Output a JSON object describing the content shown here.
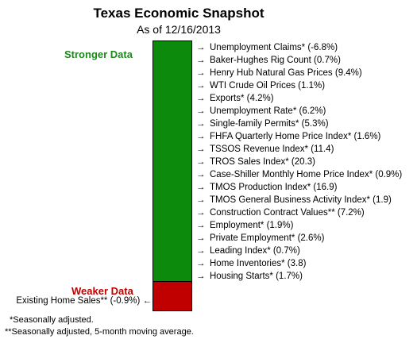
{
  "chart_data": {
    "type": "bar",
    "title": "Texas Economic Snapshot",
    "subtitle": "As of 12/16/2013",
    "categories": [
      "Stronger Data",
      "Weaker Data"
    ],
    "colors": {
      "stronger": "#0c8a0c",
      "weaker": "#c00000"
    },
    "stronger": {
      "label": "Stronger Data",
      "items": [
        "Unemployment Claims* (-6.8%)",
        "Baker-Hughes Rig Count (0.7%)",
        "Henry Hub Natural Gas Prices (9.4%)",
        "WTI Crude Oil Prices (1.1%)",
        "Exports* (4.2%)",
        "Unemployment Rate* (6.2%)",
        "Single-family Permits* (5.3%)",
        "FHFA Quarterly Home Price Index* (1.6%)",
        "TSSOS Revenue Index* (11.4)",
        "TROS Sales Index* (20.3)",
        "Case-Shiller Monthly Home Price Index* (0.9%)",
        "TMOS Production Index* (16.9)",
        "TMOS General Business Activity Index* (1.9)",
        "Construction Contract Values** (7.2%)",
        "Employment* (1.9%)",
        "Private Employment* (2.6%)",
        "Leading Index* (0.7%)",
        "Home Inventories* (3.8)",
        "Housing Starts* (1.7%)"
      ]
    },
    "weaker": {
      "label": "Weaker Data",
      "items": [
        "Existing Home Sales** (-0.9%)"
      ]
    },
    "arrow_right": "→",
    "arrow_left": "←",
    "footnotes": [
      "*Seasonally adjusted.",
      "**Seasonally adjusted, 5-month moving average."
    ]
  }
}
